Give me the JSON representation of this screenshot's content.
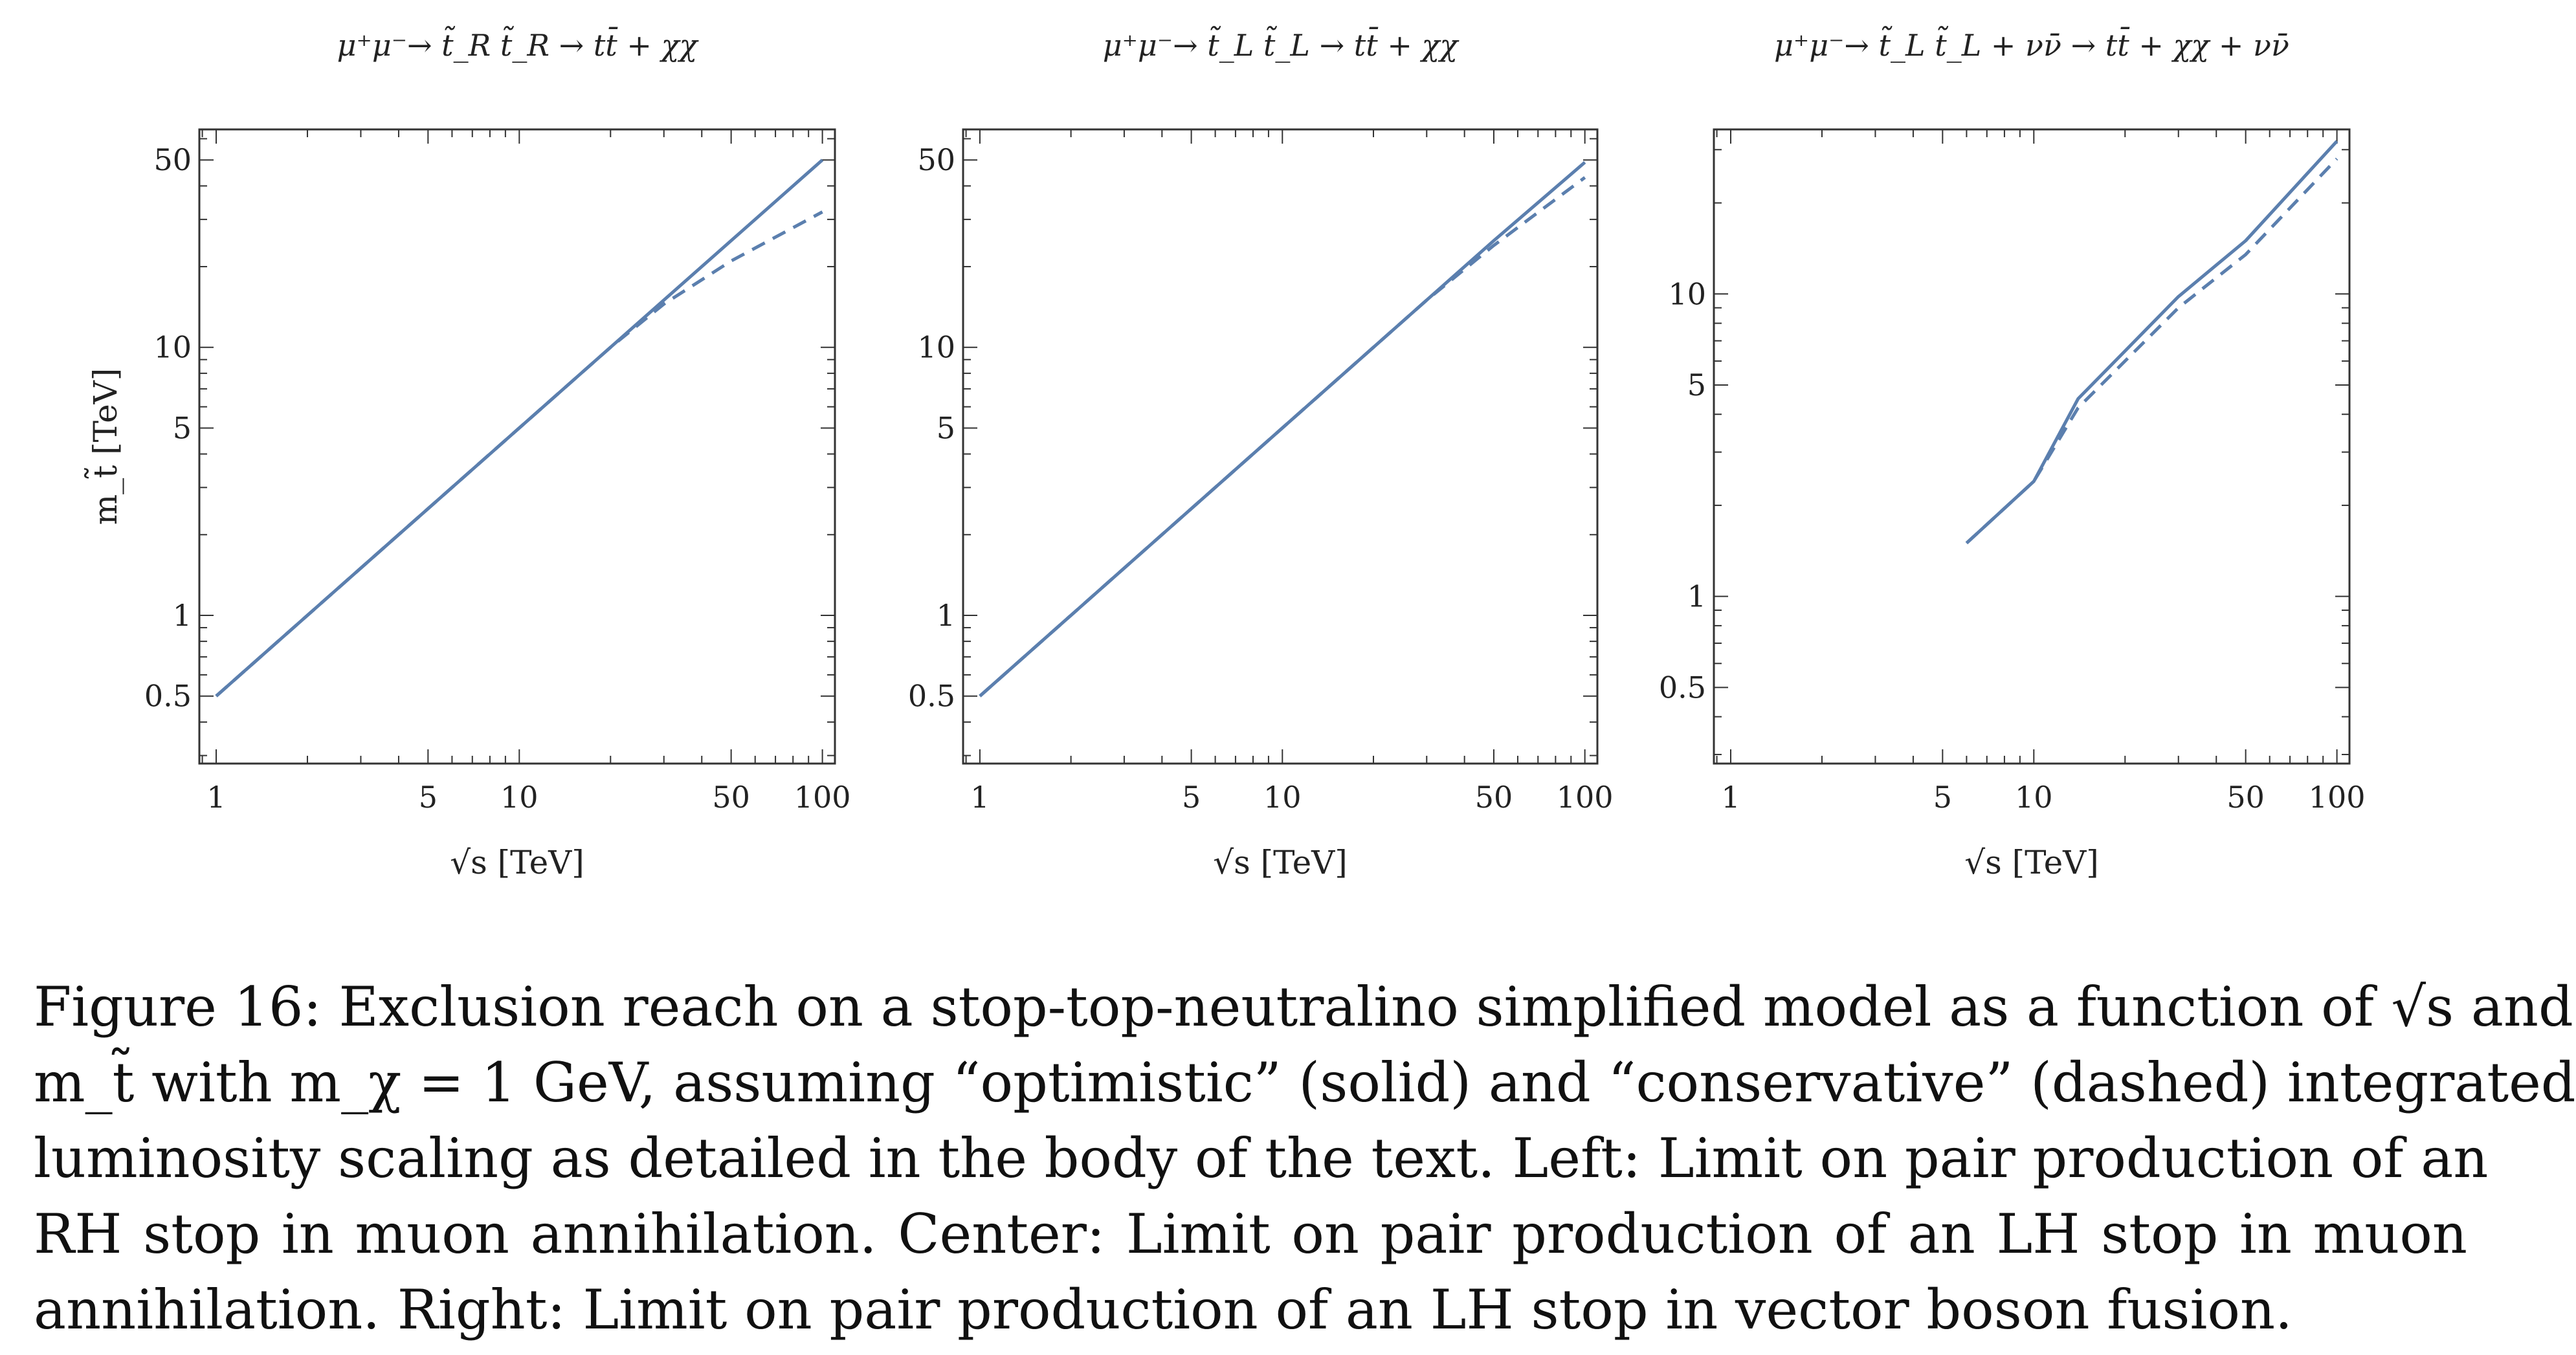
{
  "chart_data": [
    {
      "type": "line",
      "title": "μ⁺μ⁻→ t̃_R t̃_R → tt̄ + χχ",
      "xlabel": "√s [TeV]",
      "ylabel": "m_t̃ [TeV]",
      "xscale": "log",
      "yscale": "log",
      "xlim": [
        0.88,
        110
      ],
      "ylim": [
        0.28,
        65
      ],
      "xticks": [
        1,
        5,
        10,
        50,
        100
      ],
      "yticks": [
        0.5,
        1,
        5,
        10,
        50
      ],
      "grid": false,
      "series": [
        {
          "style": "solid",
          "x": [
            1,
            3,
            10,
            30,
            50,
            100
          ],
          "y": [
            0.5,
            1.5,
            5,
            15,
            25,
            50
          ]
        },
        {
          "style": "dashed",
          "x": [
            1,
            3,
            10,
            20,
            30,
            50,
            100
          ],
          "y": [
            0.5,
            1.5,
            5,
            10,
            14.5,
            21,
            32
          ]
        }
      ]
    },
    {
      "type": "line",
      "title": "μ⁺μ⁻→ t̃_L t̃_L → tt̄ + χχ",
      "xlabel": "√s [TeV]",
      "ylabel": "",
      "xscale": "log",
      "yscale": "log",
      "xlim": [
        0.88,
        110
      ],
      "ylim": [
        0.28,
        65
      ],
      "xticks": [
        1,
        5,
        10,
        50,
        100
      ],
      "yticks": [
        0.5,
        1,
        5,
        10,
        50
      ],
      "grid": false,
      "series": [
        {
          "style": "solid",
          "x": [
            1,
            3,
            10,
            30,
            50,
            100
          ],
          "y": [
            0.5,
            1.5,
            5,
            15,
            25,
            49
          ]
        },
        {
          "style": "dashed",
          "x": [
            1,
            3,
            10,
            30,
            50,
            100
          ],
          "y": [
            0.5,
            1.5,
            5,
            15,
            24,
            43
          ]
        }
      ]
    },
    {
      "type": "line",
      "title": "μ⁺μ⁻→ t̃_L t̃_L + νν̄ → tt̄ + χχ + νν̄",
      "xlabel": "√s [TeV]",
      "ylabel": "",
      "xscale": "log",
      "yscale": "log",
      "xlim": [
        0.88,
        110
      ],
      "ylim": [
        0.28,
        35
      ],
      "xticks": [
        1,
        5,
        10,
        50,
        100
      ],
      "yticks": [
        0.5,
        1,
        5,
        10
      ],
      "grid": false,
      "series": [
        {
          "style": "solid",
          "x": [
            6,
            10,
            14,
            30,
            50,
            100
          ],
          "y": [
            1.5,
            2.4,
            4.5,
            9.8,
            15,
            32
          ]
        },
        {
          "style": "dashed",
          "x": [
            6,
            10,
            14,
            30,
            50,
            100
          ],
          "y": [
            1.5,
            2.4,
            4.2,
            9.0,
            13.5,
            28
          ]
        }
      ]
    }
  ],
  "colors": {
    "line": "#5b7fae",
    "axis": "#333333"
  },
  "caption": {
    "lines": [
      "Figure 16: Exclusion reach on a stop-top-neutralino simplified model as a function of √s and",
      "m_t̃ with m_χ = 1 GeV, assuming “optimistic” (solid) and “conservative” (dashed) integrated",
      "luminosity scaling as detailed in the body of the text. Left: Limit on pair production of an",
      "RH stop in muon annihilation. Center: Limit on pair production of an LH stop in muon",
      "annihilation. Right: Limit on pair production of an LH stop in vector boson fusion."
    ]
  }
}
